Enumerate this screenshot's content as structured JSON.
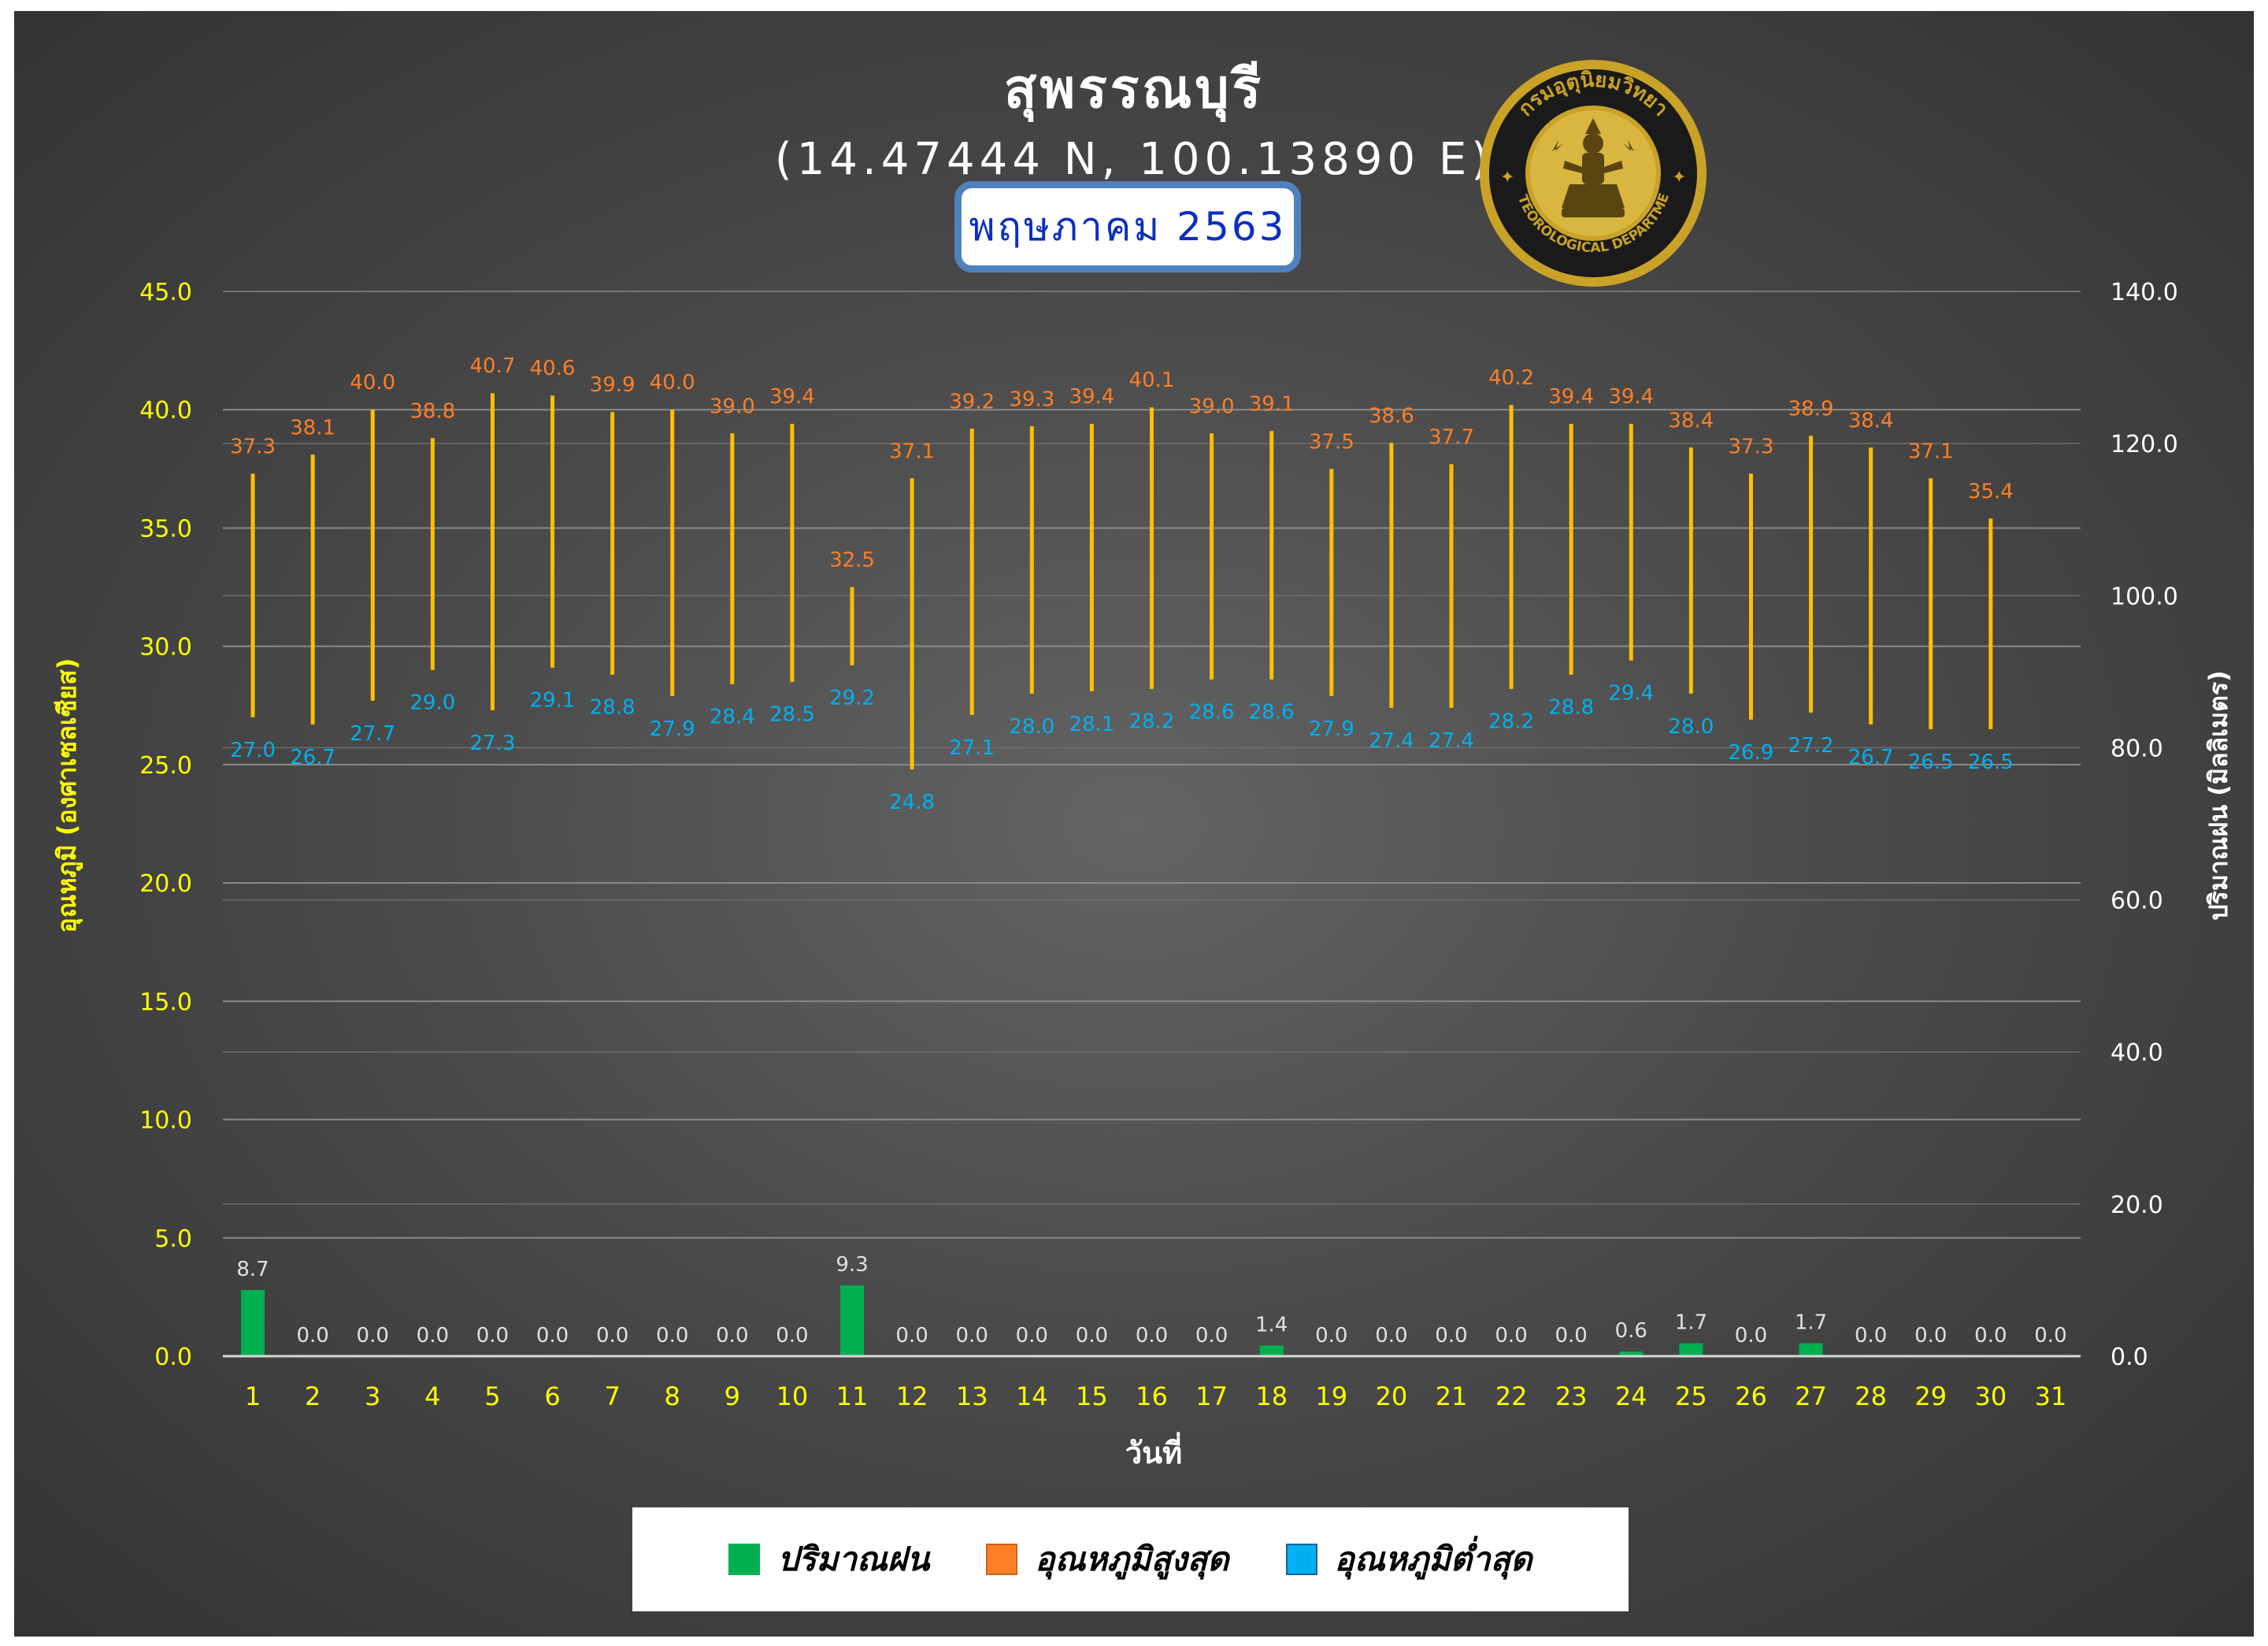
{
  "title": "สุพรรณบุรี",
  "coordinates": "(14.47444 N, 100.13890 E)",
  "month_label": "พฤษภาคม 2563",
  "logo": {
    "top_text": "กรมอุตุนิยมวิทยา",
    "bottom_text": "METEOROLOGICAL DEPARTMENT"
  },
  "colors": {
    "rain": "#00b050",
    "tmax": "#ff7f27",
    "tmin": "#00b0f0",
    "range_line": "#ffc000",
    "left_axis": "#ffff00",
    "right_axis": "#ffffff",
    "logo_gold": "#c9a227"
  },
  "legend": {
    "rain": "ปริมาณฝน",
    "tmax": "อุณหภูมิสูงสุด",
    "tmin": "อุณหภูมิต่ำสุด"
  },
  "chart_data": {
    "type": "bar",
    "xlabel": "วันที่",
    "ylabel": "อุณหภูมิ (องศาเซลเซียส)",
    "y2label": "ปริมาณฝน (มิลลิเมตร)",
    "ylim": [
      0,
      45
    ],
    "y2lim": [
      0,
      140
    ],
    "yticks": [
      "0.0",
      "5.0",
      "10.0",
      "15.0",
      "20.0",
      "25.0",
      "30.0",
      "35.0",
      "40.0",
      "45.0"
    ],
    "y2ticks": [
      "0.0",
      "20.0",
      "40.0",
      "60.0",
      "80.0",
      "100.0",
      "120.0",
      "140.0"
    ],
    "grid": true,
    "legend_position": "bottom",
    "categories": [
      "1",
      "2",
      "3",
      "4",
      "5",
      "6",
      "7",
      "8",
      "9",
      "10",
      "11",
      "12",
      "13",
      "14",
      "15",
      "16",
      "17",
      "18",
      "19",
      "20",
      "21",
      "22",
      "23",
      "24",
      "25",
      "26",
      "27",
      "28",
      "29",
      "30",
      "31"
    ],
    "series": [
      {
        "name": "ปริมาณฝน",
        "type": "bar",
        "axis": "right",
        "values": [
          8.7,
          0.0,
          0.0,
          0.0,
          0.0,
          0.0,
          0.0,
          0.0,
          0.0,
          0.0,
          9.3,
          0.0,
          0.0,
          0.0,
          0.0,
          0.0,
          0.0,
          1.4,
          0.0,
          0.0,
          0.0,
          0.0,
          0.0,
          0.6,
          1.7,
          0.0,
          1.7,
          0.0,
          0.0,
          0.0,
          0.0
        ]
      },
      {
        "name": "อุณหภูมิสูงสุด",
        "type": "range-high",
        "axis": "left",
        "values": [
          37.3,
          38.1,
          40.0,
          38.8,
          40.7,
          40.6,
          39.9,
          40.0,
          39.0,
          39.4,
          32.5,
          37.1,
          39.2,
          39.3,
          39.4,
          40.1,
          39.0,
          39.1,
          37.5,
          38.6,
          37.7,
          40.2,
          39.4,
          39.4,
          38.4,
          37.3,
          38.9,
          38.4,
          37.1,
          35.4,
          null
        ]
      },
      {
        "name": "อุณหภูมิต่ำสุด",
        "type": "range-low",
        "axis": "left",
        "values": [
          27.0,
          26.7,
          27.7,
          29.0,
          27.3,
          29.1,
          28.8,
          27.9,
          28.4,
          28.5,
          29.2,
          24.8,
          27.1,
          28.0,
          28.1,
          28.2,
          28.6,
          28.6,
          27.9,
          27.4,
          27.4,
          28.2,
          28.8,
          29.4,
          28.0,
          26.9,
          27.2,
          26.7,
          26.5,
          26.5,
          null
        ]
      }
    ]
  }
}
